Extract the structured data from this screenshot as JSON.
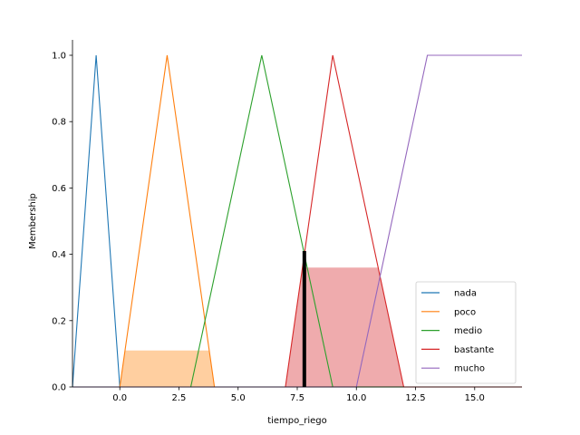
{
  "chart_data": {
    "type": "line",
    "title": "",
    "xlabel": "tiempo_riego",
    "ylabel": "Membership",
    "xlim": [
      -2,
      17
    ],
    "ylim": [
      0,
      1
    ],
    "x_ticks": [
      0.0,
      2.5,
      5.0,
      7.5,
      10.0,
      12.5,
      15.0
    ],
    "x_tick_labels": [
      "0.0",
      "2.5",
      "5.0",
      "7.5",
      "10.0",
      "12.5",
      "15.0"
    ],
    "y_ticks": [
      0.0,
      0.2,
      0.4,
      0.6,
      0.8,
      1.0
    ],
    "y_tick_labels": [
      "0.0",
      "0.2",
      "0.4",
      "0.6",
      "0.8",
      "1.0"
    ],
    "legend_position": "bottom-right",
    "series": [
      {
        "name": "nada",
        "color": "#1f77b4",
        "x": [
          -2,
          -1,
          0,
          17
        ],
        "y": [
          0,
          1,
          0,
          0
        ]
      },
      {
        "name": "poco",
        "color": "#ff7f0e",
        "x": [
          -2,
          0,
          2,
          4,
          17
        ],
        "y": [
          0,
          0,
          1,
          0,
          0
        ]
      },
      {
        "name": "medio",
        "color": "#2ca02c",
        "x": [
          -2,
          3,
          6,
          9,
          17
        ],
        "y": [
          0,
          0,
          1,
          0,
          0
        ]
      },
      {
        "name": "bastante",
        "color": "#d62728",
        "x": [
          -2,
          7,
          9,
          12,
          17
        ],
        "y": [
          0,
          0,
          1,
          0,
          0
        ]
      },
      {
        "name": "mucho",
        "color": "#9467bd",
        "x": [
          -2,
          10,
          13,
          17
        ],
        "y": [
          0,
          0,
          1,
          1
        ]
      }
    ],
    "activations": [
      {
        "term": "poco",
        "color": "#ffbb78",
        "level": 0.11,
        "x": [
          0,
          0.22,
          3.78,
          4
        ],
        "y": [
          0,
          0.11,
          0.11,
          0
        ]
      },
      {
        "term": "bastante",
        "color": "#e8888a",
        "level": 0.36,
        "x": [
          7,
          7.72,
          10.92,
          12
        ],
        "y": [
          0,
          0.36,
          0.36,
          0
        ]
      }
    ],
    "defuzzified": {
      "x": 7.8,
      "membership": 0.41,
      "color": "#000000"
    }
  }
}
